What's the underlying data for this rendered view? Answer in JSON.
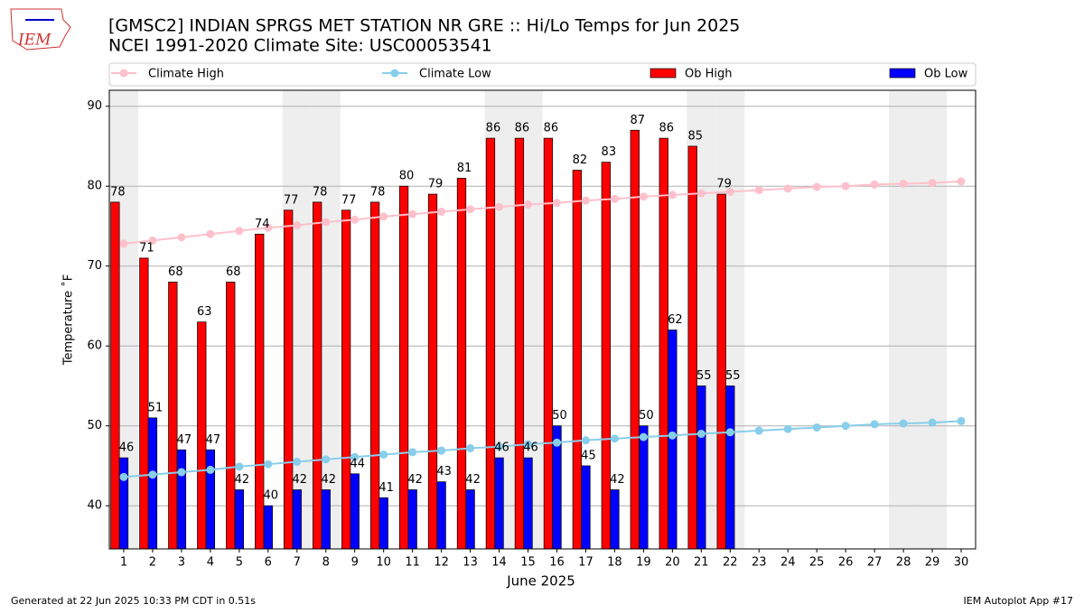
{
  "chart_data": {
    "type": "bar",
    "title": "[GMSC2] INDIAN  SPRGS MET STATION NR GRE :: Hi/Lo Temps for Jun 2025",
    "subtitle": "NCEI 1991-2020 Climate Site: USC00053541",
    "x_label": "June 2025",
    "y_label": "Temperature ˚F",
    "x": [
      1,
      2,
      3,
      4,
      5,
      6,
      7,
      8,
      9,
      10,
      11,
      12,
      13,
      14,
      15,
      16,
      17,
      18,
      19,
      20,
      21,
      22,
      23,
      24,
      25,
      26,
      27,
      28,
      29,
      30
    ],
    "series": [
      {
        "name": "Climate High",
        "type": "line",
        "color": "#ffc0cb",
        "values": [
          72.8,
          73.2,
          73.6,
          74.0,
          74.4,
          74.8,
          75.1,
          75.5,
          75.8,
          76.2,
          76.5,
          76.8,
          77.1,
          77.4,
          77.7,
          77.9,
          78.2,
          78.4,
          78.7,
          78.9,
          79.1,
          79.3,
          79.5,
          79.7,
          79.9,
          80.0,
          80.2,
          80.3,
          80.4,
          80.6
        ]
      },
      {
        "name": "Climate Low",
        "type": "line",
        "color": "#87ceeb",
        "values": [
          43.6,
          43.9,
          44.2,
          44.5,
          44.9,
          45.2,
          45.5,
          45.8,
          46.1,
          46.4,
          46.7,
          46.9,
          47.2,
          47.4,
          47.7,
          47.9,
          48.2,
          48.4,
          48.6,
          48.8,
          49.0,
          49.2,
          49.4,
          49.6,
          49.8,
          50.0,
          50.2,
          50.3,
          50.4,
          50.6
        ]
      },
      {
        "name": "Ob High",
        "type": "bar",
        "color": "#ff0000",
        "values": [
          78,
          71,
          68,
          63,
          68,
          74,
          77,
          78,
          77,
          78,
          80,
          79,
          81,
          86,
          86,
          86,
          82,
          83,
          87,
          86,
          85,
          79,
          null,
          null,
          null,
          null,
          null,
          null,
          null,
          null
        ]
      },
      {
        "name": "Ob Low",
        "type": "bar",
        "color": "#0000ff",
        "values": [
          46,
          51,
          47,
          47,
          42,
          40,
          42,
          42,
          44,
          41,
          42,
          43,
          42,
          46,
          46,
          50,
          45,
          42,
          50,
          62,
          55,
          55,
          null,
          null,
          null,
          null,
          null,
          null,
          null,
          null
        ]
      }
    ],
    "shaded_days": [
      1,
      7,
      8,
      14,
      15,
      21,
      22,
      28,
      29
    ],
    "xlim": [
      0.5,
      30.5
    ],
    "ylim": [
      34.6,
      92.0
    ],
    "xticks": [
      1,
      2,
      3,
      4,
      5,
      6,
      7,
      8,
      9,
      10,
      11,
      12,
      13,
      14,
      15,
      16,
      17,
      18,
      19,
      20,
      21,
      22,
      23,
      24,
      25,
      26,
      27,
      28,
      29,
      30
    ],
    "yticks": [
      40,
      50,
      60,
      70,
      80,
      90
    ],
    "grid": true
  },
  "logo": "IEM",
  "footer": {
    "left": "Generated at 22 Jun 2025 10:33 PM CDT in 0.51s",
    "right": "IEM Autoplot App #17"
  }
}
